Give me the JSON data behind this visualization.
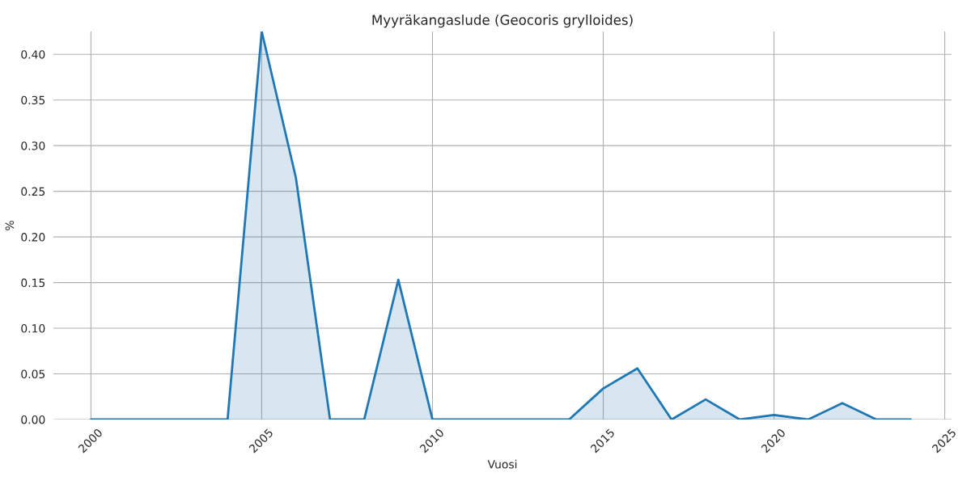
{
  "chart_data": {
    "type": "area",
    "title": "Myyräkangaslude (Geocoris grylloides)",
    "xlabel": "Vuosi",
    "ylabel": "%",
    "x": [
      2000,
      2001,
      2002,
      2003,
      2004,
      2005,
      2006,
      2007,
      2008,
      2009,
      2010,
      2011,
      2012,
      2013,
      2014,
      2015,
      2016,
      2017,
      2018,
      2019,
      2020,
      2021,
      2022,
      2023,
      2024
    ],
    "series": [
      {
        "color": "#1f77b4",
        "values": [
          0,
          0,
          0,
          0,
          0,
          0.425,
          0.265,
          0,
          0,
          0.153,
          0,
          0,
          0,
          0,
          0,
          0.034,
          0.056,
          0,
          0.022,
          0,
          0.005,
          0,
          0.018,
          0,
          0
        ]
      }
    ],
    "xlim": [
      1998.9,
      2025.2
    ],
    "ylim": [
      0,
      0.425
    ],
    "xticks": [
      2000,
      2005,
      2010,
      2015,
      2020,
      2025
    ],
    "yticks": [
      {
        "value": 0,
        "label": "0.00"
      },
      {
        "value": 0.05,
        "label": "0.05"
      },
      {
        "value": 0.1,
        "label": "0.10"
      },
      {
        "value": 0.15,
        "label": "0.15"
      },
      {
        "value": 0.2,
        "label": "0.20"
      },
      {
        "value": 0.25,
        "label": "0.25"
      },
      {
        "value": 0.3,
        "label": "0.30"
      },
      {
        "value": 0.35,
        "label": "0.35"
      },
      {
        "value": 0.4,
        "label": "0.40"
      }
    ],
    "grid": true
  }
}
